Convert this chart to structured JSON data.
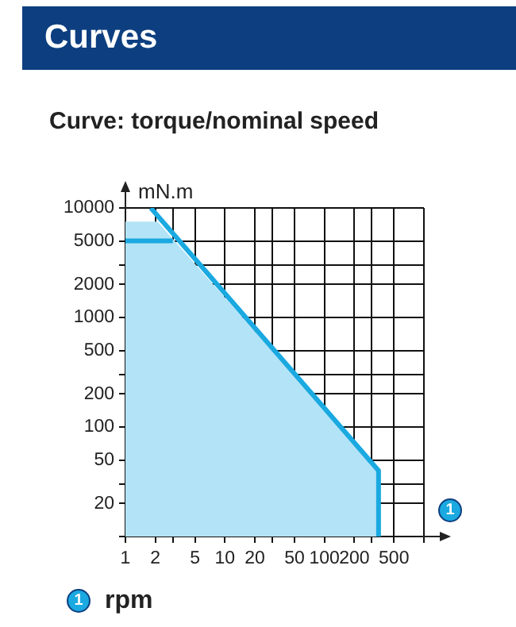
{
  "chart_data": {
    "type": "line",
    "title": "Curves",
    "subtitle": "Curve: torque/nominal speed",
    "xlabel": "rpm",
    "ylabel": "mN.m",
    "annotations": [
      "1"
    ],
    "log": "xy",
    "grid": true,
    "legend": false,
    "marker": "none",
    "line_style": "solid",
    "xlim": [
      1,
      1000
    ],
    "xticks": [
      1,
      2,
      {
        "value": 3,
        "label": null
      },
      5,
      10,
      20,
      {
        "value": 30,
        "label": null
      },
      50,
      100,
      200,
      {
        "value": 300,
        "label": null
      },
      500,
      {
        "value": 1000,
        "label": null
      }
    ],
    "ylim": [
      10,
      10000
    ],
    "yticks": [
      {
        "value": 10,
        "label": null
      },
      20,
      {
        "value": 30,
        "label": null
      },
      50,
      100,
      200,
      {
        "value": 300,
        "label": null
      },
      500,
      1000,
      2000,
      {
        "value": 3000,
        "label": null
      },
      5000,
      10000
    ],
    "series": [
      {
        "type": "area",
        "color": "#b3e3f7",
        "x": [
          1,
          2.1,
          350,
          350
        ],
        "values": [
          7500,
          7500,
          40,
          10
        ]
      },
      {
        "type": "line",
        "color": "#1aa9e0",
        "x": [
          1.8,
          350,
          350
        ],
        "values": [
          10000,
          40,
          10
        ]
      },
      {
        "type": "line",
        "color": "#1aa9e0",
        "x": [
          1,
          3
        ],
        "values": [
          5000,
          5000
        ]
      }
    ]
  }
}
